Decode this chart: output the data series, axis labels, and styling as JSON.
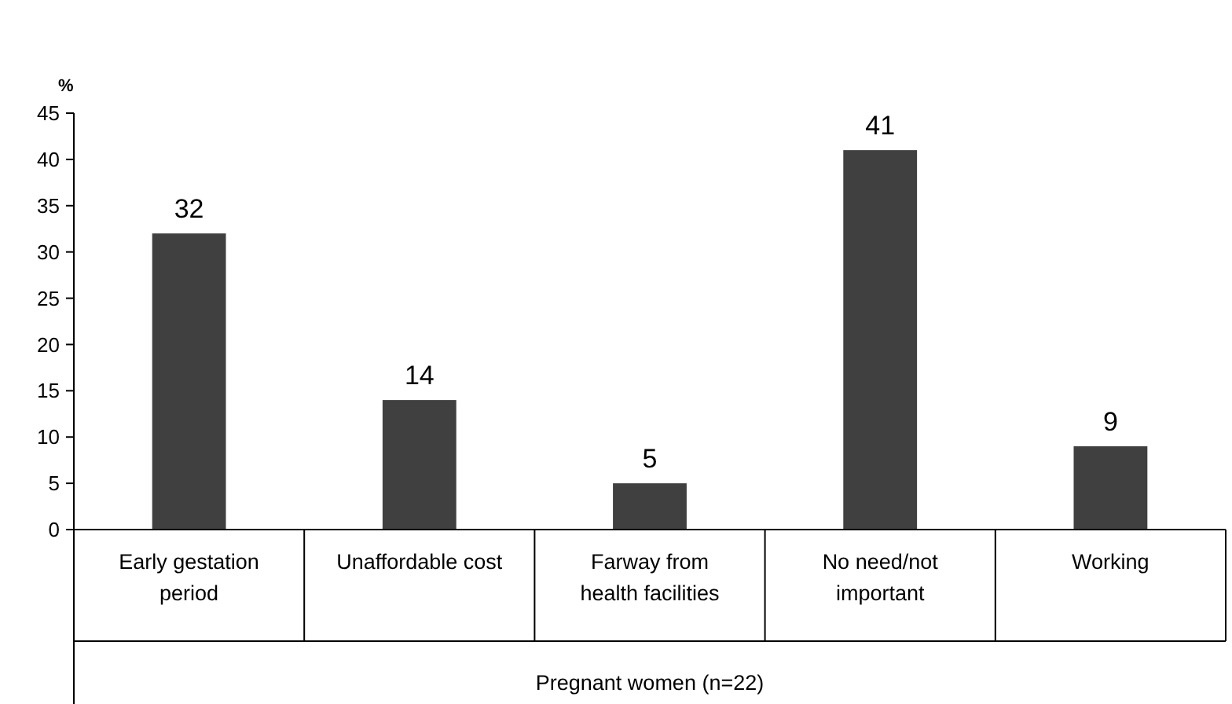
{
  "chart_data": {
    "type": "bar",
    "ylabel": "%",
    "xlabel": "Pregnant women (n=22)",
    "categories": [
      "Early gestation period",
      "Unaffordable cost",
      "Farway from health facilities",
      "No need/not important",
      "Working"
    ],
    "values": [
      32,
      14,
      5,
      41,
      9
    ],
    "color": "#404040",
    "data_labels": true,
    "ylim": [
      0,
      45
    ],
    "yticks": [
      0,
      5,
      10,
      15,
      20,
      25,
      30,
      35,
      40,
      45
    ],
    "grid": false
  }
}
